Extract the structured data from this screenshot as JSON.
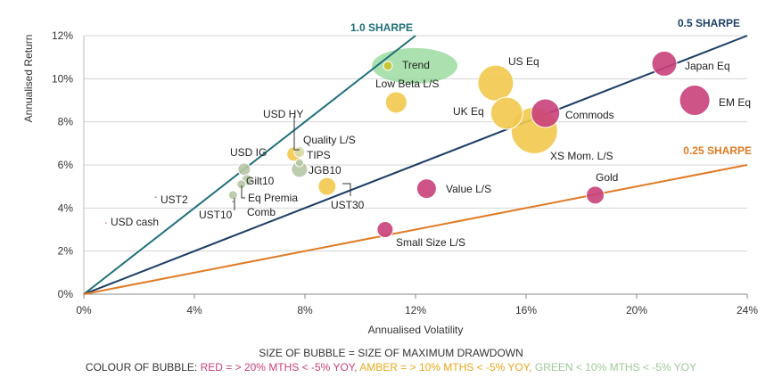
{
  "chart_data": {
    "type": "scatter",
    "xlabel": "Annualised Volatility",
    "ylabel": "Annualised Return",
    "xlim": [
      0,
      24
    ],
    "ylim": [
      0,
      12
    ],
    "x_ticks": [
      "0%",
      "4%",
      "8%",
      "12%",
      "16%",
      "20%",
      "24%"
    ],
    "y_ticks": [
      "0%",
      "2%",
      "4%",
      "6%",
      "8%",
      "10%",
      "12%"
    ],
    "grid": "horizontal",
    "sharpe_lines": [
      {
        "label": "1.0 SHARPE",
        "slope": 1.0,
        "color": "#1f6f7a"
      },
      {
        "label": "0.5 SHARPE",
        "slope": 0.5,
        "color": "#1e3f66"
      },
      {
        "label": "0.25 SHARPE",
        "slope": 0.25,
        "color": "#e07b26"
      }
    ],
    "points": [
      {
        "label": "Trend",
        "x": 11.0,
        "y": 10.6,
        "size": 0.5,
        "color": "#c6c22a"
      },
      {
        "label": "US Eq",
        "x": 14.9,
        "y": 9.8,
        "size": 2.0,
        "color": "#f2c94c"
      },
      {
        "label": "Japan Eq",
        "x": 21.0,
        "y": 10.7,
        "size": 1.4,
        "color": "#c9407a"
      },
      {
        "label": "Low Beta L/S",
        "x": 11.3,
        "y": 8.9,
        "size": 1.2,
        "color": "#f2c94c"
      },
      {
        "label": "UK Eq",
        "x": 15.3,
        "y": 8.4,
        "size": 1.8,
        "color": "#f2c94c"
      },
      {
        "label": "Commods",
        "x": 16.7,
        "y": 8.4,
        "size": 1.6,
        "color": "#c9407a"
      },
      {
        "label": "EM Eq",
        "x": 22.1,
        "y": 9.0,
        "size": 1.7,
        "color": "#c9407a"
      },
      {
        "label": "XS Mom. L/S",
        "x": 16.3,
        "y": 7.6,
        "size": 2.6,
        "color": "#f2c94c"
      },
      {
        "label": "USD HY",
        "x": 7.6,
        "y": 6.5,
        "size": 0.8,
        "color": "#f2c94c"
      },
      {
        "label": "Quality L/S",
        "x": 7.8,
        "y": 6.6,
        "size": 0.6,
        "color": "#d7dca8"
      },
      {
        "label": "TIPS",
        "x": 7.8,
        "y": 6.1,
        "size": 0.45,
        "color": "#b5c7a3"
      },
      {
        "label": "JGB10",
        "x": 7.8,
        "y": 5.8,
        "size": 0.9,
        "color": "#b5c7a3"
      },
      {
        "label": "USD IG",
        "x": 5.8,
        "y": 5.8,
        "size": 0.7,
        "color": "#b5c7a3"
      },
      {
        "label": "Gilt10",
        "x": 5.9,
        "y": 5.3,
        "size": 0.6,
        "color": "#b5c7a3"
      },
      {
        "label": "Eq Premia",
        "x": 5.7,
        "y": 5.1,
        "size": 0.5,
        "color": "#b5c7a3"
      },
      {
        "label": "Comb",
        "x": 5.4,
        "y": 4.6,
        "size": 0.5,
        "color": "#b5c7a3"
      },
      {
        "label": "UST2",
        "x": 2.6,
        "y": 4.5,
        "size": 0.12,
        "color": "#888888"
      },
      {
        "label": "UST10",
        "x": 5.4,
        "y": 4.3,
        "size": 0.12,
        "color": "#888888"
      },
      {
        "label": "UST30",
        "x": 8.8,
        "y": 5.0,
        "size": 1.0,
        "color": "#f2c94c"
      },
      {
        "label": "Value L/S",
        "x": 12.4,
        "y": 4.9,
        "size": 1.1,
        "color": "#c9407a"
      },
      {
        "label": "Gold",
        "x": 18.5,
        "y": 4.6,
        "size": 1.0,
        "color": "#c9407a"
      },
      {
        "label": "Small Size L/S",
        "x": 10.9,
        "y": 3.0,
        "size": 0.9,
        "color": "#c9407a"
      },
      {
        "label": "USD cash",
        "x": 0.8,
        "y": 3.3,
        "size": 0.08,
        "color": "#cc8899"
      }
    ],
    "highlight": {
      "label": "Trend",
      "color": "#8fd694"
    }
  },
  "footer": {
    "line1": "SIZE OF BUBBLE = SIZE OF MAXIMUM DRAWDOWN",
    "prefix": "COLOUR OF BUBBLE: ",
    "red": "RED = > 20% MTHS < -5% YOY,",
    "amber": "AMBER = > 10% MTHS < -5% YOY,",
    "green": "GREEN < 10% MTHS < -5% YOY"
  }
}
